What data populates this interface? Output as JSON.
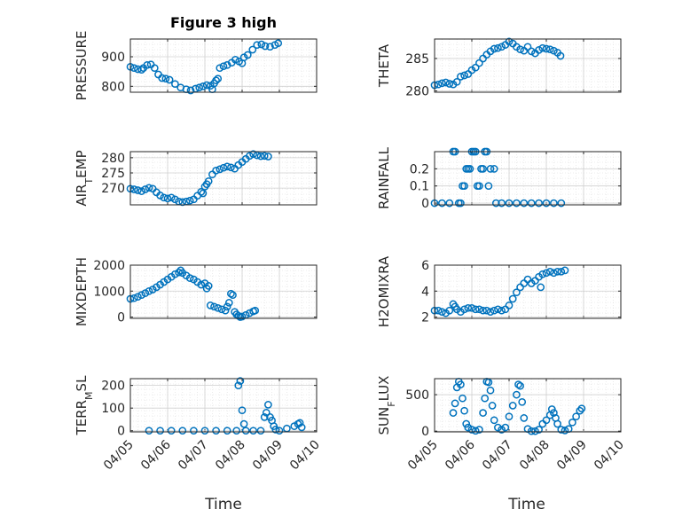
{
  "figure": {
    "title": "Figure 3 high",
    "xlabel": "Time"
  },
  "style": {
    "marker_color": "#0072BD",
    "axis_color": "#262626",
    "grid_color": "#dedede"
  },
  "chart_data": [
    {
      "type": "scatter",
      "ylabel": "PRESSURE",
      "ylabel_sub": "",
      "ylabel_tail": "",
      "ylim": [
        780,
        960
      ],
      "yticks": [
        800,
        900
      ],
      "xlim": [
        5,
        10
      ],
      "xticks": [
        5,
        6,
        7,
        8,
        9,
        10
      ],
      "xticklabels": [],
      "points": [
        [
          5.0,
          866
        ],
        [
          5.1,
          862
        ],
        [
          5.2,
          858
        ],
        [
          5.3,
          856
        ],
        [
          5.35,
          862
        ],
        [
          5.45,
          872
        ],
        [
          5.55,
          874
        ],
        [
          5.65,
          862
        ],
        [
          5.75,
          840
        ],
        [
          5.85,
          828
        ],
        [
          5.95,
          826
        ],
        [
          6.05,
          822
        ],
        [
          6.2,
          808
        ],
        [
          6.35,
          796
        ],
        [
          6.5,
          790
        ],
        [
          6.62,
          786
        ],
        [
          6.75,
          792
        ],
        [
          6.85,
          796
        ],
        [
          6.95,
          800
        ],
        [
          7.05,
          804
        ],
        [
          7.15,
          802
        ],
        [
          7.2,
          790
        ],
        [
          7.25,
          810
        ],
        [
          7.3,
          820
        ],
        [
          7.35,
          826
        ],
        [
          7.4,
          862
        ],
        [
          7.5,
          868
        ],
        [
          7.6,
          872
        ],
        [
          7.72,
          880
        ],
        [
          7.82,
          890
        ],
        [
          7.92,
          884
        ],
        [
          8.0,
          878
        ],
        [
          8.05,
          898
        ],
        [
          8.15,
          906
        ],
        [
          8.28,
          924
        ],
        [
          8.4,
          940
        ],
        [
          8.52,
          942
        ],
        [
          8.62,
          936
        ],
        [
          8.75,
          934
        ],
        [
          8.88,
          940
        ],
        [
          8.97,
          946
        ]
      ]
    },
    {
      "type": "scatter",
      "ylabel": "THETA",
      "ylabel_sub": "",
      "ylabel_tail": "",
      "ylim": [
        279.8,
        288
      ],
      "yticks": [
        280,
        285
      ],
      "xlim": [
        5,
        10
      ],
      "xticks": [
        5,
        6,
        7,
        8,
        9,
        10
      ],
      "xticklabels": [],
      "points": [
        [
          5.0,
          280.9
        ],
        [
          5.1,
          281.0
        ],
        [
          5.2,
          281.2
        ],
        [
          5.3,
          281.3
        ],
        [
          5.4,
          281.1
        ],
        [
          5.5,
          281.0
        ],
        [
          5.6,
          281.4
        ],
        [
          5.7,
          282.2
        ],
        [
          5.8,
          282.4
        ],
        [
          5.9,
          282.6
        ],
        [
          6.0,
          283.2
        ],
        [
          6.1,
          283.6
        ],
        [
          6.2,
          284.3
        ],
        [
          6.3,
          285.0
        ],
        [
          6.4,
          285.6
        ],
        [
          6.5,
          286.1
        ],
        [
          6.6,
          286.5
        ],
        [
          6.7,
          286.6
        ],
        [
          6.8,
          286.8
        ],
        [
          6.9,
          287.1
        ],
        [
          7.0,
          287.6
        ],
        [
          7.1,
          287.3
        ],
        [
          7.2,
          286.8
        ],
        [
          7.3,
          286.4
        ],
        [
          7.4,
          286.2
        ],
        [
          7.5,
          286.8
        ],
        [
          7.6,
          286.1
        ],
        [
          7.7,
          285.8
        ],
        [
          7.8,
          286.3
        ],
        [
          7.9,
          286.6
        ],
        [
          8.0,
          286.5
        ],
        [
          8.1,
          286.4
        ],
        [
          8.2,
          286.2
        ],
        [
          8.3,
          285.9
        ],
        [
          8.38,
          285.4
        ]
      ]
    },
    {
      "type": "scatter",
      "ylabel": "AIR",
      "ylabel_sub": "T",
      "ylabel_tail": "EMP",
      "ylim": [
        264.5,
        282
      ],
      "yticks": [
        270,
        275,
        280
      ],
      "xlim": [
        5,
        10
      ],
      "xticks": [
        5,
        6,
        7,
        8,
        9,
        10
      ],
      "xticklabels": [],
      "points": [
        [
          5.0,
          269.8
        ],
        [
          5.1,
          269.6
        ],
        [
          5.2,
          269.3
        ],
        [
          5.3,
          269.0
        ],
        [
          5.4,
          269.6
        ],
        [
          5.5,
          270.1
        ],
        [
          5.6,
          269.8
        ],
        [
          5.7,
          268.6
        ],
        [
          5.8,
          267.6
        ],
        [
          5.9,
          266.9
        ],
        [
          6.0,
          266.6
        ],
        [
          6.1,
          266.9
        ],
        [
          6.2,
          266.3
        ],
        [
          6.3,
          265.6
        ],
        [
          6.4,
          265.4
        ],
        [
          6.5,
          265.6
        ],
        [
          6.6,
          265.9
        ],
        [
          6.7,
          266.3
        ],
        [
          6.8,
          267.5
        ],
        [
          6.9,
          268.8
        ],
        [
          6.95,
          268.3
        ],
        [
          7.0,
          270.5
        ],
        [
          7.05,
          271.3
        ],
        [
          7.1,
          272.3
        ],
        [
          7.2,
          274.5
        ],
        [
          7.3,
          275.8
        ],
        [
          7.4,
          276.2
        ],
        [
          7.5,
          276.7
        ],
        [
          7.6,
          277.1
        ],
        [
          7.7,
          276.8
        ],
        [
          7.8,
          276.4
        ],
        [
          7.9,
          277.6
        ],
        [
          8.0,
          278.6
        ],
        [
          8.1,
          279.6
        ],
        [
          8.2,
          280.6
        ],
        [
          8.3,
          281.2
        ],
        [
          8.4,
          280.8
        ],
        [
          8.5,
          280.5
        ],
        [
          8.6,
          280.6
        ],
        [
          8.7,
          280.4
        ]
      ]
    },
    {
      "type": "scatter",
      "ylabel": "RAINFALL",
      "ylabel_sub": "",
      "ylabel_tail": "",
      "ylim": [
        -0.01,
        0.3
      ],
      "yticks": [
        0,
        0.1,
        0.2
      ],
      "xlim": [
        5,
        10
      ],
      "xticks": [
        5,
        6,
        7,
        8,
        9,
        10
      ],
      "xticklabels": [],
      "points": [
        [
          5.0,
          0
        ],
        [
          5.2,
          0
        ],
        [
          5.4,
          0
        ],
        [
          5.5,
          0.3
        ],
        [
          5.55,
          0.3
        ],
        [
          5.65,
          0
        ],
        [
          5.7,
          0
        ],
        [
          5.75,
          0.1
        ],
        [
          5.8,
          0.1
        ],
        [
          5.85,
          0.2
        ],
        [
          5.9,
          0.2
        ],
        [
          5.95,
          0.2
        ],
        [
          6.0,
          0.3
        ],
        [
          6.05,
          0.3
        ],
        [
          6.1,
          0.3
        ],
        [
          6.15,
          0.1
        ],
        [
          6.2,
          0.1
        ],
        [
          6.25,
          0.2
        ],
        [
          6.3,
          0.2
        ],
        [
          6.35,
          0.3
        ],
        [
          6.4,
          0.3
        ],
        [
          6.45,
          0.1
        ],
        [
          6.5,
          0.2
        ],
        [
          6.6,
          0.2
        ],
        [
          6.65,
          0
        ],
        [
          6.8,
          0
        ],
        [
          7.0,
          0
        ],
        [
          7.2,
          0
        ],
        [
          7.4,
          0
        ],
        [
          7.6,
          0
        ],
        [
          7.8,
          0
        ],
        [
          8.0,
          0
        ],
        [
          8.2,
          0
        ],
        [
          8.4,
          0
        ]
      ]
    },
    {
      "type": "scatter",
      "ylabel": "MIXDEPTH",
      "ylabel_sub": "",
      "ylabel_tail": "",
      "ylim": [
        -50,
        2000
      ],
      "yticks": [
        0,
        1000,
        2000
      ],
      "xlim": [
        5,
        10
      ],
      "xticks": [
        5,
        6,
        7,
        8,
        9,
        10
      ],
      "xticklabels": [],
      "points": [
        [
          5.0,
          700
        ],
        [
          5.1,
          730
        ],
        [
          5.2,
          780
        ],
        [
          5.3,
          850
        ],
        [
          5.4,
          920
        ],
        [
          5.5,
          1000
        ],
        [
          5.6,
          1060
        ],
        [
          5.7,
          1150
        ],
        [
          5.8,
          1250
        ],
        [
          5.9,
          1350
        ],
        [
          6.0,
          1450
        ],
        [
          6.1,
          1550
        ],
        [
          6.2,
          1650
        ],
        [
          6.3,
          1720
        ],
        [
          6.35,
          1800
        ],
        [
          6.4,
          1700
        ],
        [
          6.5,
          1600
        ],
        [
          6.6,
          1500
        ],
        [
          6.7,
          1450
        ],
        [
          6.8,
          1350
        ],
        [
          6.9,
          1250
        ],
        [
          7.0,
          1300
        ],
        [
          7.05,
          1100
        ],
        [
          7.1,
          1200
        ],
        [
          7.15,
          450
        ],
        [
          7.25,
          400
        ],
        [
          7.35,
          350
        ],
        [
          7.45,
          300
        ],
        [
          7.55,
          250
        ],
        [
          7.6,
          400
        ],
        [
          7.65,
          550
        ],
        [
          7.7,
          900
        ],
        [
          7.75,
          850
        ],
        [
          7.8,
          200
        ],
        [
          7.85,
          100
        ],
        [
          7.9,
          50
        ],
        [
          7.95,
          0
        ],
        [
          8.0,
          20
        ],
        [
          8.1,
          80
        ],
        [
          8.2,
          150
        ],
        [
          8.3,
          220
        ],
        [
          8.35,
          250
        ]
      ]
    },
    {
      "type": "scatter",
      "ylabel": "H2OMIXRA",
      "ylabel_sub": "",
      "ylabel_tail": "",
      "ylim": [
        1.9,
        6
      ],
      "yticks": [
        2,
        4,
        6
      ],
      "xlim": [
        5,
        10
      ],
      "xticks": [
        5,
        6,
        7,
        8,
        9,
        10
      ],
      "xticklabels": [],
      "points": [
        [
          5.0,
          2.5
        ],
        [
          5.1,
          2.5
        ],
        [
          5.2,
          2.4
        ],
        [
          5.3,
          2.3
        ],
        [
          5.4,
          2.5
        ],
        [
          5.5,
          3.0
        ],
        [
          5.55,
          2.8
        ],
        [
          5.6,
          2.6
        ],
        [
          5.7,
          2.4
        ],
        [
          5.8,
          2.6
        ],
        [
          5.9,
          2.7
        ],
        [
          6.0,
          2.7
        ],
        [
          6.1,
          2.6
        ],
        [
          6.2,
          2.6
        ],
        [
          6.3,
          2.5
        ],
        [
          6.4,
          2.5
        ],
        [
          6.5,
          2.4
        ],
        [
          6.6,
          2.5
        ],
        [
          6.7,
          2.6
        ],
        [
          6.8,
          2.5
        ],
        [
          6.9,
          2.6
        ],
        [
          7.0,
          2.9
        ],
        [
          7.1,
          3.4
        ],
        [
          7.2,
          3.9
        ],
        [
          7.3,
          4.3
        ],
        [
          7.4,
          4.6
        ],
        [
          7.5,
          4.9
        ],
        [
          7.6,
          4.6
        ],
        [
          7.7,
          4.8
        ],
        [
          7.8,
          5.1
        ],
        [
          7.85,
          4.3
        ],
        [
          7.9,
          5.3
        ],
        [
          8.0,
          5.4
        ],
        [
          8.1,
          5.5
        ],
        [
          8.2,
          5.4
        ],
        [
          8.3,
          5.5
        ],
        [
          8.4,
          5.5
        ],
        [
          8.5,
          5.6
        ]
      ]
    },
    {
      "type": "scatter",
      "ylabel": "TERR",
      "ylabel_sub": "M",
      "ylabel_tail": "SL",
      "ylim": [
        -5,
        230
      ],
      "yticks": [
        0,
        100,
        200
      ],
      "xlim": [
        5,
        10
      ],
      "xticks": [
        5,
        6,
        7,
        8,
        9,
        10
      ],
      "xticklabels": [
        "04/05",
        "04/06",
        "04/07",
        "04/08",
        "04/09",
        "04/10"
      ],
      "points": [
        [
          5.5,
          0
        ],
        [
          5.8,
          0
        ],
        [
          6.1,
          0
        ],
        [
          6.4,
          0
        ],
        [
          6.7,
          0
        ],
        [
          7.0,
          0
        ],
        [
          7.3,
          0
        ],
        [
          7.6,
          0
        ],
        [
          7.85,
          0
        ],
        [
          7.9,
          200
        ],
        [
          7.95,
          220
        ],
        [
          8.0,
          90
        ],
        [
          8.05,
          30
        ],
        [
          8.1,
          0
        ],
        [
          8.3,
          0
        ],
        [
          8.5,
          0
        ],
        [
          8.6,
          60
        ],
        [
          8.65,
          80
        ],
        [
          8.7,
          115
        ],
        [
          8.75,
          60
        ],
        [
          8.8,
          45
        ],
        [
          8.85,
          20
        ],
        [
          8.9,
          5
        ],
        [
          9.0,
          0
        ],
        [
          9.2,
          10
        ],
        [
          9.4,
          20
        ],
        [
          9.5,
          30
        ],
        [
          9.55,
          35
        ],
        [
          9.6,
          15
        ]
      ]
    },
    {
      "type": "scatter",
      "ylabel": "SUN",
      "ylabel_sub": "F",
      "ylabel_tail": "LUX",
      "ylim": [
        -10,
        720
      ],
      "yticks": [
        0,
        500
      ],
      "xlim": [
        5,
        10
      ],
      "xticks": [
        5,
        6,
        7,
        8,
        9,
        10
      ],
      "xticklabels": [
        "04/05",
        "04/06",
        "04/07",
        "04/08",
        "04/09",
        "04/10"
      ],
      "points": [
        [
          5.5,
          250
        ],
        [
          5.55,
          380
        ],
        [
          5.6,
          600
        ],
        [
          5.65,
          680
        ],
        [
          5.7,
          640
        ],
        [
          5.75,
          450
        ],
        [
          5.8,
          280
        ],
        [
          5.85,
          100
        ],
        [
          5.9,
          50
        ],
        [
          6.0,
          20
        ],
        [
          6.1,
          5
        ],
        [
          6.2,
          20
        ],
        [
          6.3,
          250
        ],
        [
          6.35,
          450
        ],
        [
          6.4,
          680
        ],
        [
          6.45,
          670
        ],
        [
          6.5,
          560
        ],
        [
          6.55,
          350
        ],
        [
          6.6,
          150
        ],
        [
          6.7,
          50
        ],
        [
          6.8,
          20
        ],
        [
          6.9,
          50
        ],
        [
          7.0,
          200
        ],
        [
          7.1,
          350
        ],
        [
          7.2,
          500
        ],
        [
          7.25,
          640
        ],
        [
          7.3,
          620
        ],
        [
          7.35,
          400
        ],
        [
          7.4,
          180
        ],
        [
          7.5,
          30
        ],
        [
          7.6,
          0
        ],
        [
          7.7,
          0
        ],
        [
          7.8,
          20
        ],
        [
          7.9,
          100
        ],
        [
          8.0,
          150
        ],
        [
          8.1,
          220
        ],
        [
          8.15,
          300
        ],
        [
          8.2,
          250
        ],
        [
          8.25,
          180
        ],
        [
          8.3,
          100
        ],
        [
          8.4,
          20
        ],
        [
          8.5,
          10
        ],
        [
          8.6,
          30
        ],
        [
          8.7,
          120
        ],
        [
          8.8,
          200
        ],
        [
          8.9,
          280
        ],
        [
          8.95,
          310
        ]
      ]
    }
  ]
}
